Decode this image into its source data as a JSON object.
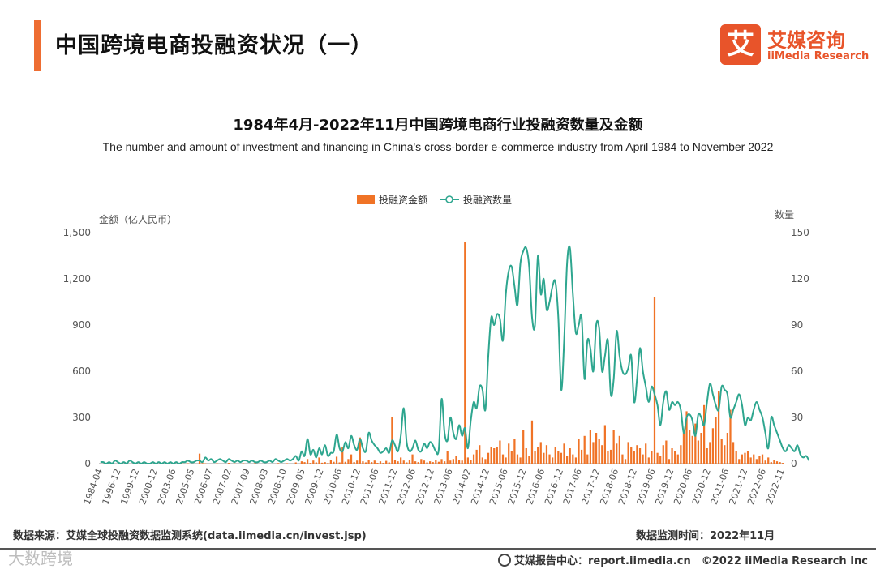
{
  "header": {
    "title": "中国跨境电商投融资状况（一）",
    "logo_mark": "艾",
    "logo_cn": "艾媒咨询",
    "logo_en": "iiMedia Research"
  },
  "colors": {
    "accent": "#ee6d32",
    "bar": "#f07326",
    "line": "#2ea68f",
    "logo": "#e8542a"
  },
  "chart_data": {
    "type": "bar+line",
    "title": "1984年4月-2022年11月中国跨境电商行业投融资数量及金额",
    "subtitle": "The number and amount of investment and financing in China's cross-border e-commerce industry from April 1984 to November 2022",
    "legend": {
      "placement": "top-center",
      "entries": [
        "投融资金额",
        "投融资数量"
      ]
    },
    "y_left": {
      "label": "金额（亿人民币）",
      "range": [
        0,
        1500
      ],
      "ticks": [
        "0",
        "300",
        "600",
        "900",
        "1,200",
        "1,500"
      ]
    },
    "y_right": {
      "label": "数量",
      "range": [
        0,
        150
      ],
      "ticks": [
        "0",
        "30",
        "60",
        "90",
        "120",
        "150"
      ]
    },
    "x_tick_labels": [
      "1984-04",
      "1996-12",
      "1999-12",
      "2000-12",
      "2003-06",
      "2005-05",
      "2006-07",
      "2007-02",
      "2007-09",
      "2008-03",
      "2008-10",
      "2009-05",
      "2009-12",
      "2010-06",
      "2010-12",
      "2011-06",
      "2011-12",
      "2012-06",
      "2012-12",
      "2013-06",
      "2014-02",
      "2014-12",
      "2015-06",
      "2015-12",
      "2016-06",
      "2016-12",
      "2017-06",
      "2017-12",
      "2018-06",
      "2018-12",
      "2019-06",
      "2019-12",
      "2020-06",
      "2020-12",
      "2021-06",
      "2021-12",
      "2022-06",
      "2022-11"
    ],
    "grid": false,
    "series": [
      {
        "name": "投融资金额",
        "type": "bar",
        "axis": "left",
        "values": [
          0,
          0,
          0,
          0,
          0,
          0,
          0,
          0,
          0,
          0,
          0,
          0,
          0,
          0,
          0,
          0,
          0,
          0,
          0,
          0,
          0,
          0,
          0,
          0,
          0,
          0,
          0,
          0,
          2,
          0,
          3,
          0,
          0,
          0,
          65,
          4,
          2,
          0,
          0,
          0,
          3,
          0,
          0,
          0,
          5,
          0,
          2,
          0,
          0,
          3,
          0,
          0,
          0,
          4,
          0,
          0,
          0,
          0,
          0,
          0,
          0,
          4,
          0,
          0,
          3,
          0,
          0,
          8,
          0,
          15,
          10,
          30,
          5,
          20,
          8,
          40,
          6,
          10,
          4,
          25,
          12,
          45,
          8,
          110,
          12,
          30,
          60,
          10,
          20,
          170,
          15,
          8,
          25,
          10,
          20,
          5,
          15,
          5,
          18,
          8,
          300,
          25,
          15,
          40,
          20,
          8,
          25,
          60,
          15,
          10,
          30,
          20,
          8,
          15,
          10,
          25,
          12,
          30,
          15,
          80,
          20,
          30,
          50,
          25,
          20,
          1440,
          40,
          25,
          60,
          90,
          120,
          40,
          30,
          70,
          110,
          100,
          110,
          150,
          60,
          40,
          130,
          80,
          160,
          60,
          40,
          220,
          100,
          50,
          280,
          80,
          110,
          140,
          70,
          120,
          60,
          40,
          110,
          80,
          70,
          130,
          50,
          100,
          60,
          40,
          160,
          90,
          180,
          60,
          220,
          140,
          200,
          160,
          120,
          250,
          80,
          90,
          220,
          130,
          180,
          60,
          30,
          140,
          110,
          80,
          120,
          100,
          60,
          130,
          40,
          80,
          1080,
          70,
          50,
          120,
          150,
          30,
          100,
          80,
          60,
          120,
          200,
          340,
          220,
          180,
          260,
          150,
          200,
          380,
          100,
          140,
          230,
          300,
          470,
          160,
          120,
          200,
          350,
          140,
          80,
          30,
          60,
          70,
          80,
          40,
          60,
          30,
          50,
          60,
          20,
          40,
          10,
          25,
          15,
          10,
          5
        ]
      },
      {
        "name": "投融资数量",
        "type": "line",
        "axis": "right",
        "values": [
          1,
          1,
          0,
          1,
          0,
          2,
          1,
          0,
          1,
          0,
          2,
          1,
          0,
          1,
          0,
          1,
          0,
          0,
          1,
          0,
          1,
          0,
          1,
          0,
          1,
          0,
          1,
          0,
          1,
          1,
          2,
          1,
          1,
          2,
          2,
          1,
          4,
          2,
          3,
          1,
          2,
          3,
          2,
          1,
          3,
          2,
          1,
          2,
          1,
          2,
          2,
          1,
          2,
          1,
          1,
          2,
          1,
          1,
          2,
          1,
          3,
          2,
          1,
          2,
          3,
          2,
          3,
          5,
          2,
          8,
          5,
          16,
          6,
          9,
          4,
          10,
          6,
          12,
          5,
          7,
          8,
          19,
          10,
          8,
          14,
          10,
          18,
          12,
          9,
          16,
          10,
          8,
          20,
          15,
          12,
          10,
          7,
          8,
          10,
          7,
          15,
          12,
          8,
          18,
          36,
          14,
          8,
          10,
          15,
          9,
          8,
          13,
          10,
          14,
          12,
          8,
          9,
          42,
          20,
          15,
          30,
          20,
          16,
          25,
          18,
          23,
          10,
          28,
          40,
          36,
          50,
          48,
          35,
          70,
          95,
          90,
          97,
          94,
          80,
          110,
          125,
          128,
          115,
          103,
          130,
          138,
          140,
          128,
          95,
          90,
          135,
          110,
          120,
          100,
          105,
          115,
          118,
          95,
          48,
          80,
          130,
          140,
          110,
          85,
          90,
          95,
          55,
          80,
          75,
          60,
          90,
          88,
          60,
          70,
          80,
          45,
          55,
          86,
          70,
          60,
          58,
          62,
          70,
          40,
          55,
          75,
          60,
          50,
          40,
          50,
          45,
          38,
          25,
          40,
          47,
          35,
          40,
          38,
          40,
          35,
          20,
          30,
          32,
          28,
          18,
          32,
          30,
          25,
          40,
          52,
          45,
          38,
          35,
          50,
          48,
          45,
          30,
          35,
          40,
          45,
          38,
          25,
          30,
          28,
          35,
          40,
          35,
          30,
          20,
          10,
          30,
          25,
          20,
          15,
          10,
          8,
          12,
          10,
          8,
          12,
          6,
          4,
          5,
          2
        ]
      }
    ]
  },
  "footer": {
    "source": "数据来源：艾媒全球投融资数据监测系统(data.iimedia.cn/invest.jsp)",
    "time": "数据监测时间：2022年11月",
    "watermark": "大数跨境",
    "report": "艾媒报告中心：report.iimedia.cn　©2022  iiMedia Research  Inc"
  }
}
